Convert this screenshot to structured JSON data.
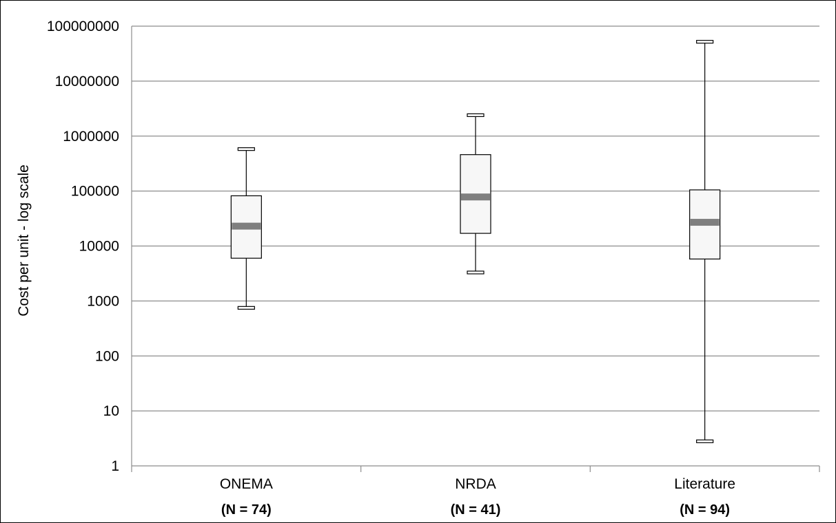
{
  "chart_data": {
    "type": "boxplot",
    "title": "",
    "xlabel": "",
    "ylabel": "Cost per unit - log scale",
    "y_scale": "log",
    "ylim": [
      1,
      100000000
    ],
    "y_ticks": [
      {
        "value": 1,
        "label": "1"
      },
      {
        "value": 10,
        "label": "10"
      },
      {
        "value": 100,
        "label": "100"
      },
      {
        "value": 1000,
        "label": "1000"
      },
      {
        "value": 10000,
        "label": "10000"
      },
      {
        "value": 100000,
        "label": "100000"
      },
      {
        "value": 1000000,
        "label": "1000000"
      },
      {
        "value": 10000000,
        "label": "10000000"
      },
      {
        "value": 100000000,
        "label": "100000000"
      }
    ],
    "grid": "horizontal",
    "legend": "none",
    "categories": [
      "ONEMA",
      "NRDA",
      "Literature"
    ],
    "sample_sizes": [
      "(N = 74)",
      "(N = 41)",
      "(N = 94)"
    ],
    "boxes": [
      {
        "category": "ONEMA",
        "min": 750,
        "q1": 6000,
        "median": 23000,
        "q3": 82000,
        "max": 580000
      },
      {
        "category": "NRDA",
        "min": 3300,
        "q1": 17000,
        "median": 78000,
        "q3": 460000,
        "max": 2400000
      },
      {
        "category": "Literature",
        "min": 2.8,
        "q1": 5800,
        "median": 27000,
        "q3": 105000,
        "max": 52000000
      }
    ],
    "colors": {
      "box_fill": "#f7f7f7",
      "box_stroke": "#000000",
      "median": "#7f7f7f",
      "grid": "#8c8c8c",
      "axis": "#8c8c8c"
    }
  }
}
